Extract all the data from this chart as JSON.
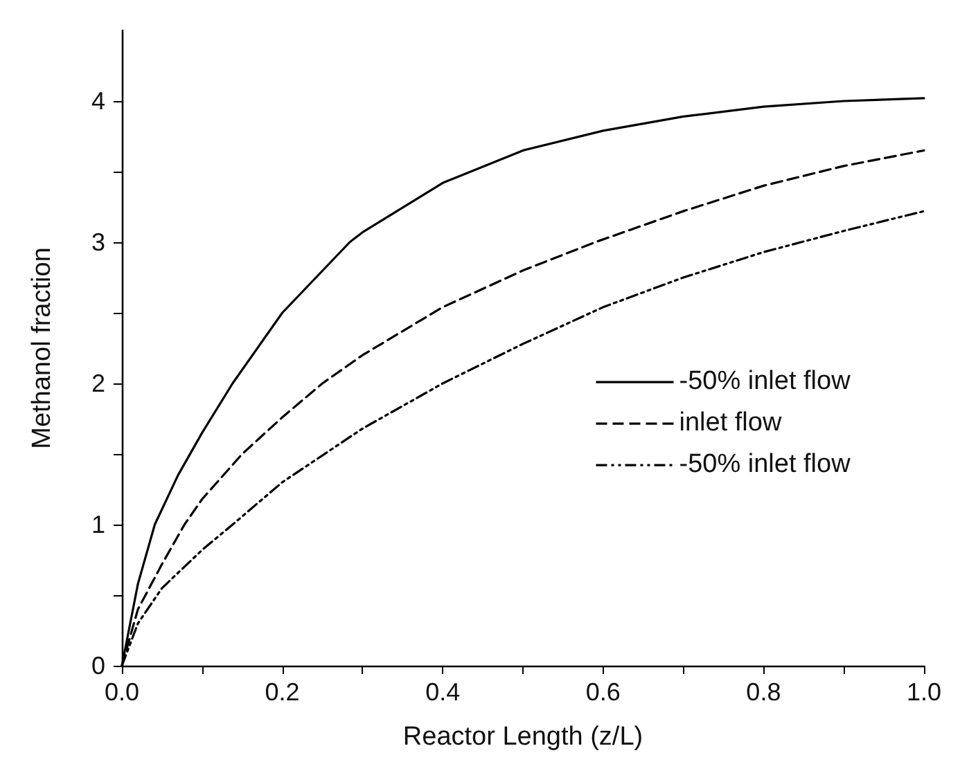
{
  "chart_data": {
    "type": "line",
    "xlabel": "Reactor Length (z/L)",
    "ylabel": "Methanol fraction",
    "xlim": [
      0,
      1.0
    ],
    "xticks": [
      {
        "value": 0,
        "label": "0.0"
      },
      {
        "value": 0.1,
        "label": null
      },
      {
        "value": 0.2,
        "label": "0.2"
      },
      {
        "value": 0.3,
        "label": null
      },
      {
        "value": 0.4,
        "label": "0.4"
      },
      {
        "value": 0.5,
        "label": null
      },
      {
        "value": 0.6,
        "label": "0.6"
      },
      {
        "value": 0.7,
        "label": null
      },
      {
        "value": 0.8,
        "label": "0.8"
      },
      {
        "value": 0.9,
        "label": null
      },
      {
        "value": 1.0,
        "label": "1.0"
      }
    ],
    "ylim": [
      0,
      4.5
    ],
    "yticks": [
      0,
      {
        "value": 0.5,
        "label": null
      },
      1,
      {
        "value": 1.5,
        "label": null
      },
      2,
      {
        "value": 2.5,
        "label": null
      },
      3,
      {
        "value": 3.5,
        "label": null
      },
      4
    ],
    "grid": false,
    "legend": "right",
    "marker": "none",
    "series": [
      {
        "name": "-50% inlet flow",
        "color": "#000000",
        "line_style": "solid",
        "x": [
          0,
          0.02,
          0.041,
          0.07,
          0.1,
          0.138,
          0.2,
          0.284,
          0.3,
          0.4,
          0.5,
          0.6,
          0.7,
          0.8,
          0.9,
          1.0
        ],
        "values": [
          0,
          0.58,
          1.0,
          1.35,
          1.65,
          2.0,
          2.5,
          3.0,
          3.07,
          3.42,
          3.65,
          3.79,
          3.89,
          3.96,
          4.0,
          4.02
        ]
      },
      {
        "name": "inlet flow",
        "color": "#000000",
        "line_style": "dashed",
        "x": [
          0,
          0.02,
          0.05,
          0.078,
          0.1,
          0.15,
          0.2,
          0.25,
          0.3,
          0.4,
          0.5,
          0.59,
          0.7,
          0.8,
          0.9,
          1.0
        ],
        "values": [
          0,
          0.4,
          0.72,
          1.0,
          1.18,
          1.5,
          1.76,
          2.0,
          2.2,
          2.54,
          2.8,
          3.0,
          3.22,
          3.4,
          3.54,
          3.65
        ]
      },
      {
        "name": "-50% inlet flow",
        "color": "#000000",
        "line_style": "dotted",
        "x": [
          0,
          0.02,
          0.05,
          0.1,
          0.138,
          0.2,
          0.3,
          0.4,
          0.5,
          0.6,
          0.7,
          0.8,
          0.88,
          0.9,
          1.0
        ],
        "values": [
          0,
          0.3,
          0.55,
          0.82,
          1.0,
          1.3,
          1.68,
          2.0,
          2.28,
          2.54,
          2.75,
          2.93,
          3.05,
          3.08,
          3.22
        ]
      }
    ]
  }
}
